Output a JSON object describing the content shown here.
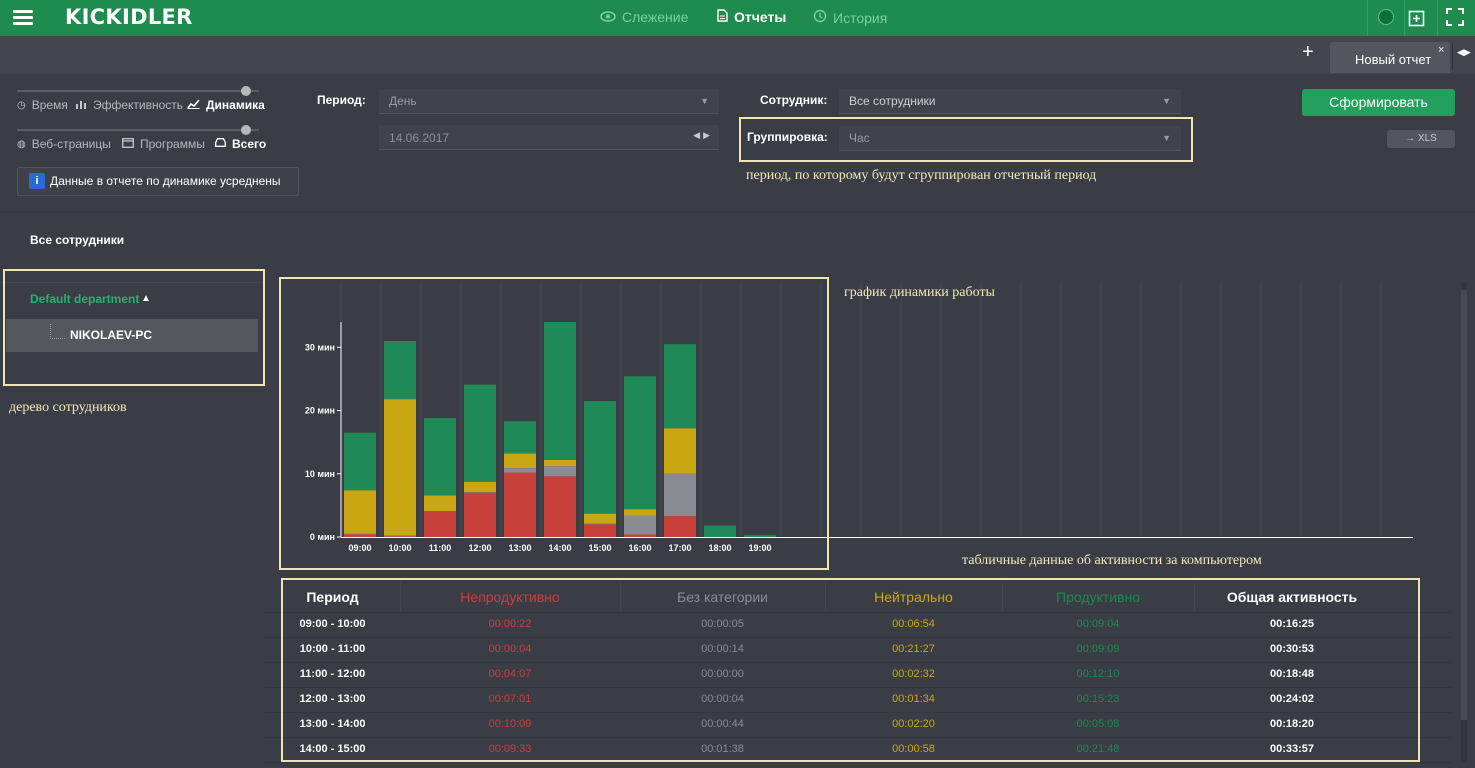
{
  "app": {
    "logo": "KICKIDLER",
    "nav": [
      {
        "label": "Слежение",
        "icon": "eye-icon"
      },
      {
        "label": "Отчеты",
        "icon": "document-icon",
        "active": true
      },
      {
        "label": "История",
        "icon": "history-icon"
      }
    ]
  },
  "tabs": {
    "active_label": "Новый отчет",
    "close_symbol": "×",
    "add_symbol": "+"
  },
  "report_types": {
    "row1": [
      {
        "label": "Время",
        "icon": "clock-icon"
      },
      {
        "label": "Эффективность",
        "icon": "bar-chart-icon"
      },
      {
        "label": "Динамика",
        "icon": "line-chart-icon",
        "selected": true
      }
    ],
    "row2": [
      {
        "label": "Веб-страницы",
        "icon": "globe-icon"
      },
      {
        "label": "Программы",
        "icon": "window-icon"
      },
      {
        "label": "Всего",
        "icon": "inbox-icon",
        "selected": true
      }
    ]
  },
  "info_note": {
    "icon_text": "i",
    "text": "Данные в отчете по динамике усреднены"
  },
  "filters": {
    "period_label": "Период:",
    "period_value": "День",
    "date_value": "14.06.2017",
    "employee_label": "Сотрудник:",
    "employee_value": "Все сотрудники",
    "grouping_label": "Группировка:",
    "grouping_value": "Час"
  },
  "buttons": {
    "generate": "Сформировать",
    "xls": "→ XLS"
  },
  "annotations": {
    "grouping": "период, по которому будут сгруппирован отчетный период",
    "tree": "дерево сотрудников",
    "chart": "график динамики работы",
    "table": "табличные данные об активности за компьютером"
  },
  "tree": {
    "title": "Все сотрудники",
    "department": "Default department",
    "computer": "NIKOLAEV-PC"
  },
  "chart_data": {
    "type": "bar",
    "stacked": true,
    "categories": [
      "09:00",
      "10:00",
      "11:00",
      "12:00",
      "13:00",
      "14:00",
      "15:00",
      "16:00",
      "17:00",
      "18:00",
      "19:00"
    ],
    "series": [
      {
        "name": "Непродуктивно",
        "color": "#c8403a",
        "values": [
          0.4,
          0.1,
          4.1,
          7.0,
          10.2,
          9.6,
          2.0,
          0.4,
          3.3,
          0,
          0
        ]
      },
      {
        "name": "Без категории",
        "color": "#8b8b93",
        "values": [
          0.1,
          0.2,
          0,
          0.1,
          0.7,
          1.6,
          0.2,
          3.0,
          6.7,
          0,
          0
        ]
      },
      {
        "name": "Нейтрально",
        "color": "#c9a712",
        "values": [
          6.9,
          21.5,
          2.5,
          1.6,
          2.3,
          1.0,
          1.5,
          1.0,
          7.2,
          0,
          0
        ]
      },
      {
        "name": "Продуктивно",
        "color": "#1f8a58",
        "values": [
          9.1,
          9.2,
          12.2,
          15.4,
          5.1,
          21.8,
          17.8,
          21.0,
          13.3,
          1.8,
          0.3
        ]
      }
    ],
    "ylim": [
      0,
      34
    ],
    "yticks": [
      {
        "value": 0,
        "label": "0 мин"
      },
      {
        "value": 10,
        "label": "10 мин"
      },
      {
        "value": 20,
        "label": "20 мин"
      },
      {
        "value": 30,
        "label": "30 мин"
      }
    ],
    "grid": true
  },
  "table": {
    "headers": [
      "Период",
      "Непродуктивно",
      "Без категории",
      "Нейтрально",
      "Продуктивно",
      "Общая активность"
    ],
    "rows": [
      [
        "09:00 - 10:00",
        "00:00:22",
        "00:00:05",
        "00:06:54",
        "00:09:04",
        "00:16:25"
      ],
      [
        "10:00 - 11:00",
        "00:00:04",
        "00:00:14",
        "00:21:27",
        "00:09:09",
        "00:30:53"
      ],
      [
        "11:00 - 12:00",
        "00:04:07",
        "00:00:00",
        "00:02:32",
        "00:12:10",
        "00:18:48"
      ],
      [
        "12:00 - 13:00",
        "00:07:01",
        "00:00:04",
        "00:01:34",
        "00:15:23",
        "00:24:02"
      ],
      [
        "13:00 - 14:00",
        "00:10:09",
        "00:00:44",
        "00:02:20",
        "00:05:08",
        "00:18:20"
      ],
      [
        "14:00 - 15:00",
        "00:09:33",
        "00:01:38",
        "00:00:58",
        "00:21:48",
        "00:33:57"
      ]
    ]
  }
}
